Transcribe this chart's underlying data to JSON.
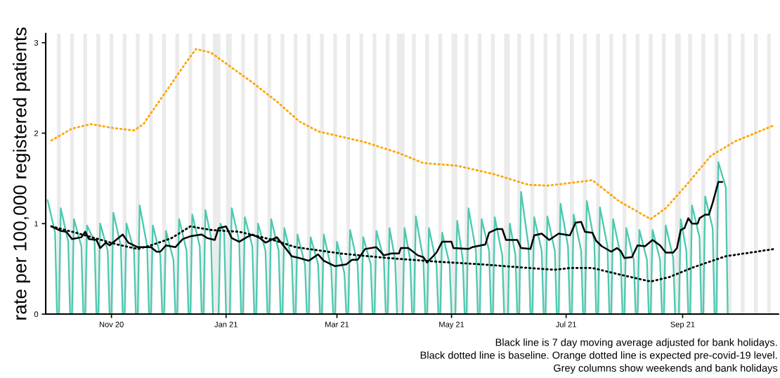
{
  "chart_data": {
    "type": "line",
    "ylabel": "rate per 100,000 registered patients",
    "xlim": [
      "2020-09-27",
      "2021-10-22"
    ],
    "ylim": [
      0,
      3.1
    ],
    "yticks": [
      0,
      1,
      2,
      3
    ],
    "xticks": [
      {
        "value": "2020-11-01",
        "label": "Nov 20"
      },
      {
        "value": "2021-01-01",
        "label": "Jan 21"
      },
      {
        "value": "2021-03-01",
        "label": "Mar 21"
      },
      {
        "value": "2021-05-01",
        "label": "May 21"
      },
      {
        "value": "2021-07-01",
        "label": "Jul 21"
      },
      {
        "value": "2021-09-01",
        "label": "Sep 21"
      }
    ],
    "grid": false,
    "annotations": [
      "Black line is 7 day moving average adjusted for bank holidays.",
      "Black dotted line is baseline. Orange dotted line is expected pre-covid-19 level.",
      "Grey columns show weekends and bank holidays"
    ],
    "bands": [
      {
        "axis": "x",
        "from": "2020-10-03",
        "to": "2020-10-05",
        "color": "#ebebeb"
      },
      {
        "axis": "x",
        "from": "2020-10-10",
        "to": "2020-10-12",
        "color": "#ebebeb"
      },
      {
        "axis": "x",
        "from": "2020-10-17",
        "to": "2020-10-19",
        "color": "#ebebeb"
      },
      {
        "axis": "x",
        "from": "2020-10-24",
        "to": "2020-10-26",
        "color": "#ebebeb"
      },
      {
        "axis": "x",
        "from": "2020-10-31",
        "to": "2020-11-02",
        "color": "#ebebeb"
      },
      {
        "axis": "x",
        "from": "2020-11-07",
        "to": "2020-11-09",
        "color": "#ebebeb"
      },
      {
        "axis": "x",
        "from": "2020-11-14",
        "to": "2020-11-16",
        "color": "#ebebeb"
      },
      {
        "axis": "x",
        "from": "2020-11-21",
        "to": "2020-11-23",
        "color": "#ebebeb"
      },
      {
        "axis": "x",
        "from": "2020-11-28",
        "to": "2020-11-30",
        "color": "#ebebeb"
      },
      {
        "axis": "x",
        "from": "2020-12-05",
        "to": "2020-12-07",
        "color": "#ebebeb"
      },
      {
        "axis": "x",
        "from": "2020-12-12",
        "to": "2020-12-14",
        "color": "#ebebeb"
      },
      {
        "axis": "x",
        "from": "2020-12-19",
        "to": "2020-12-21",
        "color": "#ebebeb"
      },
      {
        "axis": "x",
        "from": "2020-12-25",
        "to": "2020-12-29",
        "color": "#ebebeb"
      },
      {
        "axis": "x",
        "from": "2021-01-01",
        "to": "2021-01-04",
        "color": "#ebebeb"
      },
      {
        "axis": "x",
        "from": "2021-01-09",
        "to": "2021-01-11",
        "color": "#ebebeb"
      },
      {
        "axis": "x",
        "from": "2021-01-16",
        "to": "2021-01-18",
        "color": "#ebebeb"
      },
      {
        "axis": "x",
        "from": "2021-01-23",
        "to": "2021-01-25",
        "color": "#ebebeb"
      },
      {
        "axis": "x",
        "from": "2021-01-30",
        "to": "2021-02-01",
        "color": "#ebebeb"
      },
      {
        "axis": "x",
        "from": "2021-02-06",
        "to": "2021-02-08",
        "color": "#ebebeb"
      },
      {
        "axis": "x",
        "from": "2021-02-13",
        "to": "2021-02-15",
        "color": "#ebebeb"
      },
      {
        "axis": "x",
        "from": "2021-02-20",
        "to": "2021-02-22",
        "color": "#ebebeb"
      },
      {
        "axis": "x",
        "from": "2021-02-27",
        "to": "2021-03-01",
        "color": "#ebebeb"
      },
      {
        "axis": "x",
        "from": "2021-03-06",
        "to": "2021-03-08",
        "color": "#ebebeb"
      },
      {
        "axis": "x",
        "from": "2021-03-13",
        "to": "2021-03-15",
        "color": "#ebebeb"
      },
      {
        "axis": "x",
        "from": "2021-03-20",
        "to": "2021-03-22",
        "color": "#ebebeb"
      },
      {
        "axis": "x",
        "from": "2021-03-27",
        "to": "2021-03-29",
        "color": "#ebebeb"
      },
      {
        "axis": "x",
        "from": "2021-04-02",
        "to": "2021-04-06",
        "color": "#ebebeb"
      },
      {
        "axis": "x",
        "from": "2021-04-10",
        "to": "2021-04-12",
        "color": "#ebebeb"
      },
      {
        "axis": "x",
        "from": "2021-04-17",
        "to": "2021-04-19",
        "color": "#ebebeb"
      },
      {
        "axis": "x",
        "from": "2021-04-24",
        "to": "2021-04-26",
        "color": "#ebebeb"
      },
      {
        "axis": "x",
        "from": "2021-05-01",
        "to": "2021-05-04",
        "color": "#ebebeb"
      },
      {
        "axis": "x",
        "from": "2021-05-08",
        "to": "2021-05-10",
        "color": "#ebebeb"
      },
      {
        "axis": "x",
        "from": "2021-05-15",
        "to": "2021-05-17",
        "color": "#ebebeb"
      },
      {
        "axis": "x",
        "from": "2021-05-22",
        "to": "2021-05-24",
        "color": "#ebebeb"
      },
      {
        "axis": "x",
        "from": "2021-05-29",
        "to": "2021-06-01",
        "color": "#ebebeb"
      },
      {
        "axis": "x",
        "from": "2021-06-05",
        "to": "2021-06-07",
        "color": "#ebebeb"
      },
      {
        "axis": "x",
        "from": "2021-06-12",
        "to": "2021-06-14",
        "color": "#ebebeb"
      },
      {
        "axis": "x",
        "from": "2021-06-19",
        "to": "2021-06-21",
        "color": "#ebebeb"
      },
      {
        "axis": "x",
        "from": "2021-06-26",
        "to": "2021-06-28",
        "color": "#ebebeb"
      },
      {
        "axis": "x",
        "from": "2021-07-03",
        "to": "2021-07-05",
        "color": "#ebebeb"
      },
      {
        "axis": "x",
        "from": "2021-07-10",
        "to": "2021-07-12",
        "color": "#ebebeb"
      },
      {
        "axis": "x",
        "from": "2021-07-17",
        "to": "2021-07-19",
        "color": "#ebebeb"
      },
      {
        "axis": "x",
        "from": "2021-07-24",
        "to": "2021-07-26",
        "color": "#ebebeb"
      },
      {
        "axis": "x",
        "from": "2021-07-31",
        "to": "2021-08-02",
        "color": "#ebebeb"
      },
      {
        "axis": "x",
        "from": "2021-08-07",
        "to": "2021-08-09",
        "color": "#ebebeb"
      },
      {
        "axis": "x",
        "from": "2021-08-14",
        "to": "2021-08-16",
        "color": "#ebebeb"
      },
      {
        "axis": "x",
        "from": "2021-08-21",
        "to": "2021-08-23",
        "color": "#ebebeb"
      },
      {
        "axis": "x",
        "from": "2021-08-28",
        "to": "2021-08-31",
        "color": "#ebebeb"
      },
      {
        "axis": "x",
        "from": "2021-09-04",
        "to": "2021-09-06",
        "color": "#ebebeb"
      },
      {
        "axis": "x",
        "from": "2021-09-11",
        "to": "2021-09-13",
        "color": "#ebebeb"
      },
      {
        "axis": "x",
        "from": "2021-09-18",
        "to": "2021-09-20",
        "color": "#ebebeb"
      },
      {
        "axis": "x",
        "from": "2021-09-25",
        "to": "2021-09-27",
        "color": "#ebebeb"
      },
      {
        "axis": "x",
        "from": "2021-10-02",
        "to": "2021-10-04",
        "color": "#ebebeb"
      },
      {
        "axis": "x",
        "from": "2021-10-09",
        "to": "2021-10-11",
        "color": "#ebebeb"
      },
      {
        "axis": "x",
        "from": "2021-10-16",
        "to": "2021-10-18",
        "color": "#ebebeb"
      }
    ],
    "series": [
      {
        "color": "#4ec9b0",
        "line_style": "solid",
        "x": [
          "2020-09-28",
          "2020-10-02",
          "2020-10-03",
          "2020-10-04",
          "2020-10-05",
          "2020-10-09",
          "2020-10-10",
          "2020-10-11",
          "2020-10-12",
          "2020-10-16",
          "2020-10-17",
          "2020-10-18",
          "2020-10-19",
          "2020-10-23",
          "2020-10-24",
          "2020-10-25",
          "2020-10-26",
          "2020-10-30",
          "2020-10-31",
          "2020-11-01",
          "2020-11-02",
          "2020-11-06",
          "2020-11-07",
          "2020-11-08",
          "2020-11-09",
          "2020-11-13",
          "2020-11-14",
          "2020-11-15",
          "2020-11-16",
          "2020-11-20",
          "2020-11-21",
          "2020-11-22",
          "2020-11-23",
          "2020-11-27",
          "2020-11-28",
          "2020-11-29",
          "2020-11-30",
          "2020-12-04",
          "2020-12-05",
          "2020-12-06",
          "2020-12-07",
          "2020-12-11",
          "2020-12-12",
          "2020-12-13",
          "2020-12-14",
          "2020-12-18",
          "2020-12-19",
          "2020-12-20",
          "2020-12-21",
          "2020-12-24",
          "2020-12-25",
          "2020-12-28",
          "2020-12-29",
          "2020-12-31",
          "2021-01-01",
          "2021-01-03",
          "2021-01-04",
          "2021-01-08",
          "2021-01-09",
          "2021-01-10",
          "2021-01-11",
          "2021-01-15",
          "2021-01-16",
          "2021-01-17",
          "2021-01-18",
          "2021-01-22",
          "2021-01-23",
          "2021-01-24",
          "2021-01-25",
          "2021-01-29",
          "2021-01-30",
          "2021-01-31",
          "2021-02-01",
          "2021-02-05",
          "2021-02-06",
          "2021-02-07",
          "2021-02-08",
          "2021-02-12",
          "2021-02-13",
          "2021-02-14",
          "2021-02-15",
          "2021-02-19",
          "2021-02-20",
          "2021-02-21",
          "2021-02-22",
          "2021-02-26",
          "2021-02-27",
          "2021-02-28",
          "2021-03-01",
          "2021-03-05",
          "2021-03-06",
          "2021-03-07",
          "2021-03-08",
          "2021-03-12",
          "2021-03-13",
          "2021-03-14",
          "2021-03-15",
          "2021-03-19",
          "2021-03-20",
          "2021-03-21",
          "2021-03-22",
          "2021-03-26",
          "2021-03-27",
          "2021-03-28",
          "2021-03-29",
          "2021-04-01",
          "2021-04-02",
          "2021-04-05",
          "2021-04-06",
          "2021-04-09",
          "2021-04-10",
          "2021-04-11",
          "2021-04-12",
          "2021-04-16",
          "2021-04-17",
          "2021-04-18",
          "2021-04-19",
          "2021-04-23",
          "2021-04-24",
          "2021-04-25",
          "2021-04-26",
          "2021-04-30",
          "2021-05-01",
          "2021-05-03",
          "2021-05-04",
          "2021-05-07",
          "2021-05-08",
          "2021-05-09",
          "2021-05-10",
          "2021-05-14",
          "2021-05-15",
          "2021-05-16",
          "2021-05-17",
          "2021-05-21",
          "2021-05-22",
          "2021-05-23",
          "2021-05-24",
          "2021-05-28",
          "2021-05-29",
          "2021-05-31",
          "2021-06-01",
          "2021-06-04",
          "2021-06-05",
          "2021-06-06",
          "2021-06-07",
          "2021-06-11",
          "2021-06-12",
          "2021-06-13",
          "2021-06-14",
          "2021-06-18",
          "2021-06-19",
          "2021-06-20",
          "2021-06-21",
          "2021-06-25",
          "2021-06-26",
          "2021-06-27",
          "2021-06-28",
          "2021-07-02",
          "2021-07-03",
          "2021-07-04",
          "2021-07-05",
          "2021-07-09",
          "2021-07-10",
          "2021-07-11",
          "2021-07-12",
          "2021-07-16",
          "2021-07-17",
          "2021-07-18",
          "2021-07-19",
          "2021-07-23",
          "2021-07-24",
          "2021-07-25",
          "2021-07-26",
          "2021-07-30",
          "2021-07-31",
          "2021-08-01",
          "2021-08-02",
          "2021-08-06",
          "2021-08-07",
          "2021-08-08",
          "2021-08-09",
          "2021-08-13",
          "2021-08-14",
          "2021-08-15",
          "2021-08-16",
          "2021-08-20",
          "2021-08-21",
          "2021-08-22",
          "2021-08-23",
          "2021-08-27",
          "2021-08-28",
          "2021-08-30",
          "2021-08-31",
          "2021-09-03",
          "2021-09-04",
          "2021-09-05",
          "2021-09-06",
          "2021-09-10",
          "2021-09-11",
          "2021-09-12",
          "2021-09-13",
          "2021-09-17",
          "2021-09-18",
          "2021-09-19",
          "2021-09-20",
          "2021-09-24",
          "2021-09-25"
        ],
        "values": [
          1.26,
          0.9,
          0,
          0,
          1.17,
          0.8,
          0,
          0,
          1.05,
          0.75,
          0,
          0,
          0.98,
          0.8,
          0,
          0,
          1.0,
          0.7,
          0,
          0,
          1.12,
          0.75,
          0,
          0,
          1.0,
          0.7,
          0,
          0,
          1.2,
          0.75,
          0,
          0,
          0.98,
          0.65,
          0,
          0,
          0.92,
          0.6,
          0,
          0,
          1.05,
          0.7,
          0,
          0,
          1.1,
          0.75,
          0,
          0,
          1.15,
          0.85,
          0,
          0,
          1.0,
          0.9,
          0,
          0,
          1.17,
          0.8,
          0,
          0,
          1.07,
          0.75,
          0,
          0,
          1.0,
          0.7,
          0,
          0,
          1.05,
          0.7,
          0,
          0,
          0.95,
          0.6,
          0,
          0,
          0.88,
          0.55,
          0,
          0,
          0.85,
          0.55,
          0,
          0,
          0.88,
          0.5,
          0,
          0,
          0.8,
          0.45,
          0,
          0,
          0.93,
          0.55,
          0,
          0,
          0.85,
          0.55,
          0,
          0,
          0.92,
          0.6,
          0,
          0,
          0.95,
          0.6,
          0,
          0,
          0.95,
          0.6,
          0,
          0,
          1.08,
          0.6,
          0,
          0,
          0.95,
          0.55,
          0,
          0,
          0.9,
          0.55,
          0,
          0,
          1.03,
          0.6,
          0,
          0,
          1.17,
          0.7,
          0,
          0,
          1.05,
          0.7,
          0,
          0,
          1.07,
          0.65,
          0,
          0,
          1.0,
          0.65,
          0,
          0,
          1.35,
          0.75,
          0,
          0,
          1.07,
          0.7,
          0,
          0,
          1.08,
          0.7,
          0,
          0,
          1.22,
          0.75,
          0,
          0,
          1.1,
          0.7,
          0,
          0,
          1.25,
          0.8,
          0,
          0,
          1.18,
          0.75,
          0,
          0,
          1.05,
          0.65,
          0,
          0,
          0.95,
          0.6,
          0,
          0,
          0.93,
          0.6,
          0,
          0,
          0.93,
          0.6,
          0,
          0,
          0.98,
          0.62,
          0,
          0,
          1.05,
          0.7,
          0,
          0,
          1.2,
          0.85,
          0,
          0,
          1.3,
          0.95,
          0,
          0,
          1.68,
          1.4,
          0
        ]
      },
      {
        "color": "#000000",
        "line_style": "solid",
        "x": [
          "2020-09-30",
          "2020-10-05",
          "2020-10-08",
          "2020-10-11",
          "2020-10-16",
          "2020-10-18",
          "2020-10-20",
          "2020-10-24",
          "2020-10-26",
          "2020-10-29",
          "2020-10-31",
          "2020-11-04",
          "2020-11-07",
          "2020-11-10",
          "2020-11-15",
          "2020-11-22",
          "2020-11-25",
          "2020-11-27",
          "2020-11-30",
          "2020-12-05",
          "2020-12-09",
          "2020-12-13",
          "2020-12-19",
          "2020-12-22",
          "2020-12-26",
          "2020-12-28",
          "2021-01-01",
          "2021-01-04",
          "2021-01-08",
          "2021-01-12",
          "2021-01-15",
          "2021-01-19",
          "2021-01-22",
          "2021-01-28",
          "2021-02-02",
          "2021-02-05",
          "2021-02-09",
          "2021-02-14",
          "2021-02-19",
          "2021-02-22",
          "2021-02-28",
          "2021-03-06",
          "2021-03-09",
          "2021-03-12",
          "2021-03-16",
          "2021-03-22",
          "2021-03-26",
          "2021-03-30",
          "2021-04-03",
          "2021-04-04",
          "2021-04-08",
          "2021-04-13",
          "2021-04-16",
          "2021-04-18",
          "2021-04-23",
          "2021-04-26",
          "2021-05-01",
          "2021-05-02",
          "2021-05-10",
          "2021-05-12",
          "2021-05-19",
          "2021-05-21",
          "2021-05-25",
          "2021-05-28",
          "2021-05-30",
          "2021-06-05",
          "2021-06-07",
          "2021-06-12",
          "2021-06-14",
          "2021-06-18",
          "2021-06-22",
          "2021-06-27",
          "2021-07-03",
          "2021-07-06",
          "2021-07-09",
          "2021-07-11",
          "2021-07-15",
          "2021-07-17",
          "2021-07-20",
          "2021-07-25",
          "2021-07-28",
          "2021-07-30",
          "2021-08-01",
          "2021-08-05",
          "2021-08-08",
          "2021-08-12",
          "2021-08-16",
          "2021-08-20",
          "2021-08-23",
          "2021-08-27",
          "2021-08-29",
          "2021-08-31",
          "2021-09-02",
          "2021-09-04",
          "2021-09-06",
          "2021-09-09",
          "2021-09-10",
          "2021-09-13",
          "2021-09-15",
          "2021-09-17",
          "2021-09-20",
          "2021-09-22"
        ],
        "values": [
          0.97,
          0.92,
          0.91,
          0.83,
          0.85,
          0.91,
          0.83,
          0.82,
          0.73,
          0.79,
          0.76,
          0.83,
          0.88,
          0.79,
          0.74,
          0.74,
          0.69,
          0.69,
          0.76,
          0.74,
          0.83,
          0.86,
          0.88,
          0.84,
          0.82,
          0.95,
          0.97,
          0.84,
          0.8,
          0.85,
          0.88,
          0.84,
          0.79,
          0.85,
          0.72,
          0.64,
          0.62,
          0.59,
          0.66,
          0.59,
          0.53,
          0.55,
          0.6,
          0.6,
          0.72,
          0.74,
          0.65,
          0.67,
          0.67,
          0.73,
          0.73,
          0.65,
          0.63,
          0.57,
          0.68,
          0.8,
          0.8,
          0.73,
          0.72,
          0.74,
          0.77,
          0.9,
          0.94,
          0.94,
          0.82,
          0.82,
          0.73,
          0.72,
          0.87,
          0.89,
          0.82,
          0.89,
          0.87,
          1.01,
          1.02,
          0.91,
          0.9,
          0.81,
          0.75,
          0.69,
          0.73,
          0.7,
          0.62,
          0.63,
          0.76,
          0.75,
          0.82,
          0.76,
          0.68,
          0.68,
          0.73,
          0.93,
          0.95,
          1.06,
          1.0,
          1.0,
          1.06,
          1.1,
          1.1,
          1.23,
          1.46,
          1.46
        ]
      },
      {
        "color": "#000000",
        "line_style": "dotted",
        "x": [
          "2020-09-30",
          "2020-10-13",
          "2020-11-04",
          "2020-11-15",
          "2020-11-22",
          "2020-12-03",
          "2020-12-13",
          "2020-12-24",
          "2021-01-08",
          "2021-01-26",
          "2021-02-07",
          "2021-03-03",
          "2021-03-28",
          "2021-04-23",
          "2021-05-17",
          "2021-06-11",
          "2021-06-25",
          "2021-07-03",
          "2021-07-15",
          "2021-07-29",
          "2021-08-15",
          "2021-08-25",
          "2021-09-07",
          "2021-09-24",
          "2021-10-20"
        ],
        "values": [
          0.97,
          0.9,
          0.77,
          0.72,
          0.76,
          0.84,
          0.97,
          0.93,
          0.91,
          0.82,
          0.74,
          0.67,
          0.62,
          0.58,
          0.55,
          0.51,
          0.49,
          0.51,
          0.51,
          0.44,
          0.36,
          0.41,
          0.52,
          0.64,
          0.72
        ]
      },
      {
        "color": "#ffa500",
        "line_style": "dotted",
        "x": [
          "2020-09-30",
          "2020-10-11",
          "2020-10-21",
          "2020-11-01",
          "2020-11-13",
          "2020-11-18",
          "2020-11-30",
          "2020-12-11",
          "2020-12-16",
          "2020-12-24",
          "2021-01-03",
          "2021-01-15",
          "2021-01-28",
          "2021-02-09",
          "2021-02-19",
          "2021-03-16",
          "2021-04-03",
          "2021-04-16",
          "2021-05-04",
          "2021-05-23",
          "2021-06-11",
          "2021-06-21",
          "2021-07-03",
          "2021-07-15",
          "2021-07-29",
          "2021-08-15",
          "2021-08-23",
          "2021-09-04",
          "2021-09-16",
          "2021-09-29",
          "2021-10-20"
        ],
        "values": [
          1.92,
          2.05,
          2.1,
          2.06,
          2.03,
          2.1,
          2.46,
          2.79,
          2.93,
          2.89,
          2.74,
          2.56,
          2.35,
          2.13,
          2.02,
          1.9,
          1.78,
          1.67,
          1.64,
          1.55,
          1.43,
          1.42,
          1.45,
          1.48,
          1.25,
          1.05,
          1.17,
          1.45,
          1.75,
          1.91,
          2.09
        ]
      }
    ]
  }
}
